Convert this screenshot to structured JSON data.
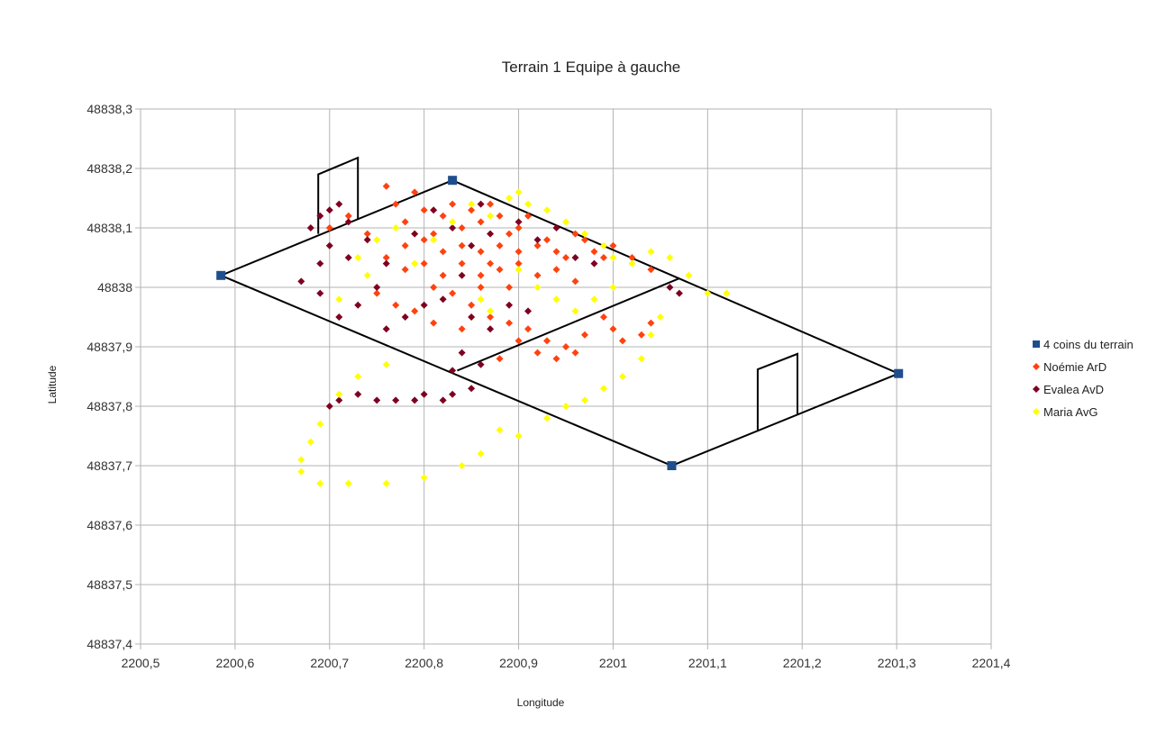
{
  "chart_data": {
    "type": "scatter",
    "title": "Terrain 1 Equipe à gauche",
    "xlabel": "Longitude",
    "ylabel": "Latitude",
    "xlim": [
      2200.5,
      2201.4
    ],
    "ylim": [
      48837.4,
      48838.3
    ],
    "x_ticks": [
      2200.5,
      2200.6,
      2200.7,
      2200.8,
      2200.9,
      2201.0,
      2201.1,
      2201.2,
      2201.3,
      2201.4
    ],
    "x_tick_labels": [
      "2200,5",
      "2200,6",
      "2200,7",
      "2200,8",
      "2200,9",
      "2201",
      "2201,1",
      "2201,2",
      "2201,3",
      "2201,4"
    ],
    "y_ticks": [
      48837.4,
      48837.5,
      48837.6,
      48837.7,
      48837.8,
      48837.9,
      48838.0,
      48838.1,
      48838.2,
      48838.3
    ],
    "y_tick_labels": [
      "48837,4",
      "48837,5",
      "48837,6",
      "48837,7",
      "48837,8",
      "48837,9",
      "48838",
      "48838,1",
      "48838,2",
      "48838,3"
    ],
    "grid": true,
    "legend_position": "right",
    "series": [
      {
        "name": "4 coins du terrain",
        "marker": "square",
        "color": "#1f4e8c",
        "points": [
          [
            2200.585,
            48838.02
          ],
          [
            2200.83,
            48838.18
          ],
          [
            2201.302,
            48837.855
          ],
          [
            2201.062,
            48837.7
          ]
        ]
      },
      {
        "name": "Noémie ArD",
        "marker": "diamond",
        "color": "#ff420e",
        "points": [
          [
            2200.7,
            48838.1
          ],
          [
            2200.72,
            48838.12
          ],
          [
            2200.74,
            48838.09
          ],
          [
            2200.76,
            48838.17
          ],
          [
            2200.77,
            48838.14
          ],
          [
            2200.78,
            48838.11
          ],
          [
            2200.79,
            48838.16
          ],
          [
            2200.8,
            48838.13
          ],
          [
            2200.81,
            48838.09
          ],
          [
            2200.82,
            48838.12
          ],
          [
            2200.83,
            48838.14
          ],
          [
            2200.84,
            48838.1
          ],
          [
            2200.85,
            48838.13
          ],
          [
            2200.86,
            48838.11
          ],
          [
            2200.87,
            48838.14
          ],
          [
            2200.88,
            48838.12
          ],
          [
            2200.89,
            48838.09
          ],
          [
            2200.9,
            48838.1
          ],
          [
            2200.91,
            48838.12
          ],
          [
            2200.92,
            48838.07
          ],
          [
            2200.93,
            48838.08
          ],
          [
            2200.94,
            48838.06
          ],
          [
            2200.95,
            48838.05
          ],
          [
            2200.96,
            48838.09
          ],
          [
            2200.97,
            48838.08
          ],
          [
            2200.98,
            48838.06
          ],
          [
            2200.99,
            48838.05
          ],
          [
            2201.0,
            48838.07
          ],
          [
            2201.02,
            48838.05
          ],
          [
            2201.04,
            48838.03
          ],
          [
            2200.76,
            48838.05
          ],
          [
            2200.78,
            48838.03
          ],
          [
            2200.8,
            48838.04
          ],
          [
            2200.82,
            48838.02
          ],
          [
            2200.84,
            48838.04
          ],
          [
            2200.86,
            48838.02
          ],
          [
            2200.88,
            48838.03
          ],
          [
            2200.9,
            48838.04
          ],
          [
            2200.92,
            48838.02
          ],
          [
            2200.94,
            48838.03
          ],
          [
            2200.96,
            48838.01
          ],
          [
            2200.78,
            48838.07
          ],
          [
            2200.8,
            48838.08
          ],
          [
            2200.82,
            48838.06
          ],
          [
            2200.84,
            48838.07
          ],
          [
            2200.86,
            48838.06
          ],
          [
            2200.88,
            48838.07
          ],
          [
            2200.9,
            48838.06
          ],
          [
            2200.81,
            48838.0
          ],
          [
            2200.83,
            48837.99
          ],
          [
            2200.85,
            48837.97
          ],
          [
            2200.87,
            48837.95
          ],
          [
            2200.89,
            48837.94
          ],
          [
            2200.91,
            48837.93
          ],
          [
            2200.93,
            48837.91
          ],
          [
            2200.95,
            48837.9
          ],
          [
            2200.97,
            48837.92
          ],
          [
            2200.99,
            48837.95
          ],
          [
            2201.0,
            48837.93
          ],
          [
            2201.03,
            48837.92
          ],
          [
            2201.04,
            48837.94
          ],
          [
            2200.75,
            48837.99
          ],
          [
            2200.77,
            48837.97
          ],
          [
            2200.79,
            48837.96
          ],
          [
            2200.81,
            48837.94
          ],
          [
            2200.84,
            48837.93
          ],
          [
            2200.88,
            48837.88
          ],
          [
            2200.9,
            48837.91
          ],
          [
            2200.92,
            48837.89
          ],
          [
            2200.94,
            48837.88
          ],
          [
            2200.96,
            48837.89
          ],
          [
            2201.01,
            48837.91
          ],
          [
            2200.86,
            48838.0
          ],
          [
            2200.87,
            48838.04
          ],
          [
            2200.89,
            48838.0
          ]
        ]
      },
      {
        "name": "Evalea AvD",
        "marker": "diamond",
        "color": "#7e0021",
        "points": [
          [
            2200.68,
            48838.1
          ],
          [
            2200.69,
            48838.12
          ],
          [
            2200.7,
            48838.13
          ],
          [
            2200.71,
            48838.14
          ],
          [
            2200.72,
            48838.11
          ],
          [
            2200.7,
            48838.07
          ],
          [
            2200.69,
            48838.04
          ],
          [
            2200.67,
            48838.01
          ],
          [
            2200.69,
            48837.99
          ],
          [
            2200.72,
            48838.05
          ],
          [
            2200.74,
            48838.08
          ],
          [
            2200.76,
            48838.04
          ],
          [
            2200.75,
            48838.0
          ],
          [
            2200.73,
            48837.97
          ],
          [
            2200.71,
            48837.95
          ],
          [
            2200.76,
            48837.93
          ],
          [
            2200.78,
            48837.95
          ],
          [
            2200.8,
            48837.97
          ],
          [
            2200.79,
            48838.09
          ],
          [
            2200.81,
            48838.13
          ],
          [
            2200.83,
            48838.1
          ],
          [
            2200.85,
            48838.07
          ],
          [
            2200.87,
            48838.09
          ],
          [
            2200.86,
            48838.14
          ],
          [
            2200.9,
            48838.11
          ],
          [
            2200.92,
            48838.08
          ],
          [
            2200.94,
            48838.1
          ],
          [
            2200.96,
            48838.05
          ],
          [
            2200.98,
            48838.04
          ],
          [
            2200.84,
            48838.02
          ],
          [
            2200.82,
            48837.98
          ],
          [
            2200.85,
            48837.95
          ],
          [
            2200.87,
            48837.93
          ],
          [
            2200.89,
            48837.97
          ],
          [
            2200.91,
            48837.96
          ],
          [
            2200.84,
            48837.89
          ],
          [
            2200.83,
            48837.86
          ],
          [
            2200.85,
            48837.83
          ],
          [
            2200.86,
            48837.87
          ],
          [
            2201.06,
            48838.0
          ],
          [
            2201.07,
            48837.99
          ],
          [
            2200.7,
            48837.8
          ],
          [
            2200.71,
            48837.81
          ],
          [
            2200.73,
            48837.82
          ],
          [
            2200.75,
            48837.81
          ],
          [
            2200.77,
            48837.81
          ],
          [
            2200.79,
            48837.81
          ],
          [
            2200.8,
            48837.82
          ],
          [
            2200.82,
            48837.81
          ],
          [
            2200.83,
            48837.82
          ]
        ]
      },
      {
        "name": "Maria AvG",
        "marker": "diamond",
        "color": "#ffff00",
        "points": [
          [
            2200.73,
            48838.05
          ],
          [
            2200.75,
            48838.08
          ],
          [
            2200.77,
            48838.1
          ],
          [
            2200.79,
            48838.04
          ],
          [
            2200.81,
            48838.08
          ],
          [
            2200.83,
            48838.11
          ],
          [
            2200.85,
            48838.14
          ],
          [
            2200.87,
            48838.12
          ],
          [
            2200.89,
            48838.15
          ],
          [
            2200.9,
            48838.16
          ],
          [
            2200.91,
            48838.14
          ],
          [
            2200.93,
            48838.13
          ],
          [
            2200.95,
            48838.11
          ],
          [
            2200.97,
            48838.09
          ],
          [
            2200.99,
            48838.07
          ],
          [
            2201.0,
            48838.05
          ],
          [
            2201.02,
            48838.04
          ],
          [
            2201.04,
            48838.06
          ],
          [
            2201.06,
            48838.05
          ],
          [
            2201.08,
            48838.02
          ],
          [
            2201.1,
            48837.99
          ],
          [
            2201.12,
            48837.99
          ],
          [
            2200.9,
            48838.03
          ],
          [
            2200.92,
            48838.0
          ],
          [
            2200.94,
            48837.98
          ],
          [
            2200.96,
            48837.96
          ],
          [
            2200.98,
            48837.98
          ],
          [
            2201.0,
            48838.0
          ],
          [
            2200.86,
            48837.98
          ],
          [
            2200.87,
            48837.96
          ],
          [
            2201.05,
            48837.95
          ],
          [
            2201.04,
            48837.92
          ],
          [
            2201.03,
            48837.88
          ],
          [
            2201.01,
            48837.85
          ],
          [
            2200.99,
            48837.83
          ],
          [
            2200.97,
            48837.81
          ],
          [
            2200.95,
            48837.8
          ],
          [
            2200.93,
            48837.78
          ],
          [
            2200.9,
            48837.75
          ],
          [
            2200.88,
            48837.76
          ],
          [
            2200.86,
            48837.72
          ],
          [
            2200.84,
            48837.7
          ],
          [
            2200.8,
            48837.68
          ],
          [
            2200.76,
            48837.67
          ],
          [
            2200.72,
            48837.67
          ],
          [
            2200.69,
            48837.67
          ],
          [
            2200.67,
            48837.69
          ],
          [
            2200.67,
            48837.71
          ],
          [
            2200.68,
            48837.74
          ],
          [
            2200.69,
            48837.77
          ],
          [
            2200.71,
            48837.82
          ],
          [
            2200.73,
            48837.85
          ],
          [
            2200.76,
            48837.87
          ],
          [
            2200.71,
            48837.98
          ],
          [
            2200.74,
            48838.02
          ]
        ]
      }
    ],
    "field_lines": [
      [
        [
          2200.585,
          48838.02
        ],
        [
          2200.83,
          48838.18
        ],
        [
          2201.302,
          48837.855
        ],
        [
          2201.062,
          48837.7
        ],
        [
          2200.585,
          48838.02
        ]
      ],
      [
        [
          2200.835,
          48837.86
        ],
        [
          2201.07,
          48838.015
        ]
      ],
      [
        [
          2200.688,
          48838.09
        ],
        [
          2200.688,
          48838.19
        ],
        [
          2200.73,
          48838.218
        ],
        [
          2200.73,
          48838.115
        ]
      ],
      [
        [
          2201.153,
          48837.76
        ],
        [
          2201.153,
          48837.862
        ],
        [
          2201.195,
          48837.888
        ],
        [
          2201.195,
          48837.786
        ]
      ]
    ]
  }
}
